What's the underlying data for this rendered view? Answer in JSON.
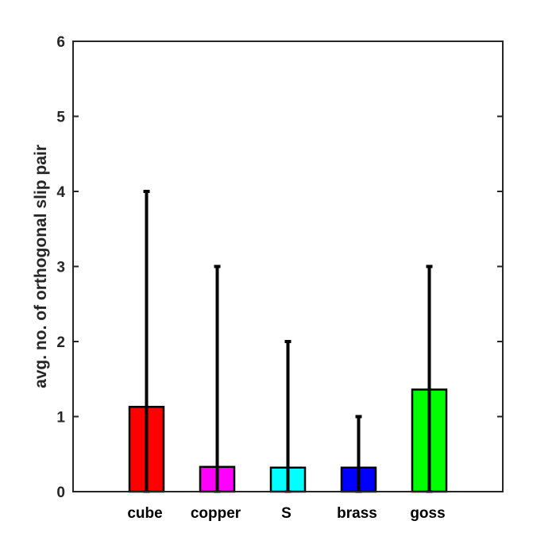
{
  "chart_data": {
    "type": "bar",
    "title": "",
    "xlabel": "",
    "ylabel": "avg. no. of orthogonal slip pair",
    "ylim": [
      0,
      6
    ],
    "yticks": [
      0,
      1,
      2,
      3,
      4,
      5,
      6
    ],
    "categories": [
      "cube",
      "copper",
      "S",
      "brass",
      "goss"
    ],
    "values": [
      1.13,
      0.33,
      0.32,
      0.32,
      1.36
    ],
    "error_upper": [
      4,
      3,
      2,
      1,
      3
    ],
    "error_lower": [
      0,
      0,
      0,
      0,
      0
    ],
    "colors": [
      "#ff0000",
      "#ff00ff",
      "#00ffff",
      "#0000ff",
      "#00ff00"
    ],
    "grid": false,
    "legend": "none"
  }
}
